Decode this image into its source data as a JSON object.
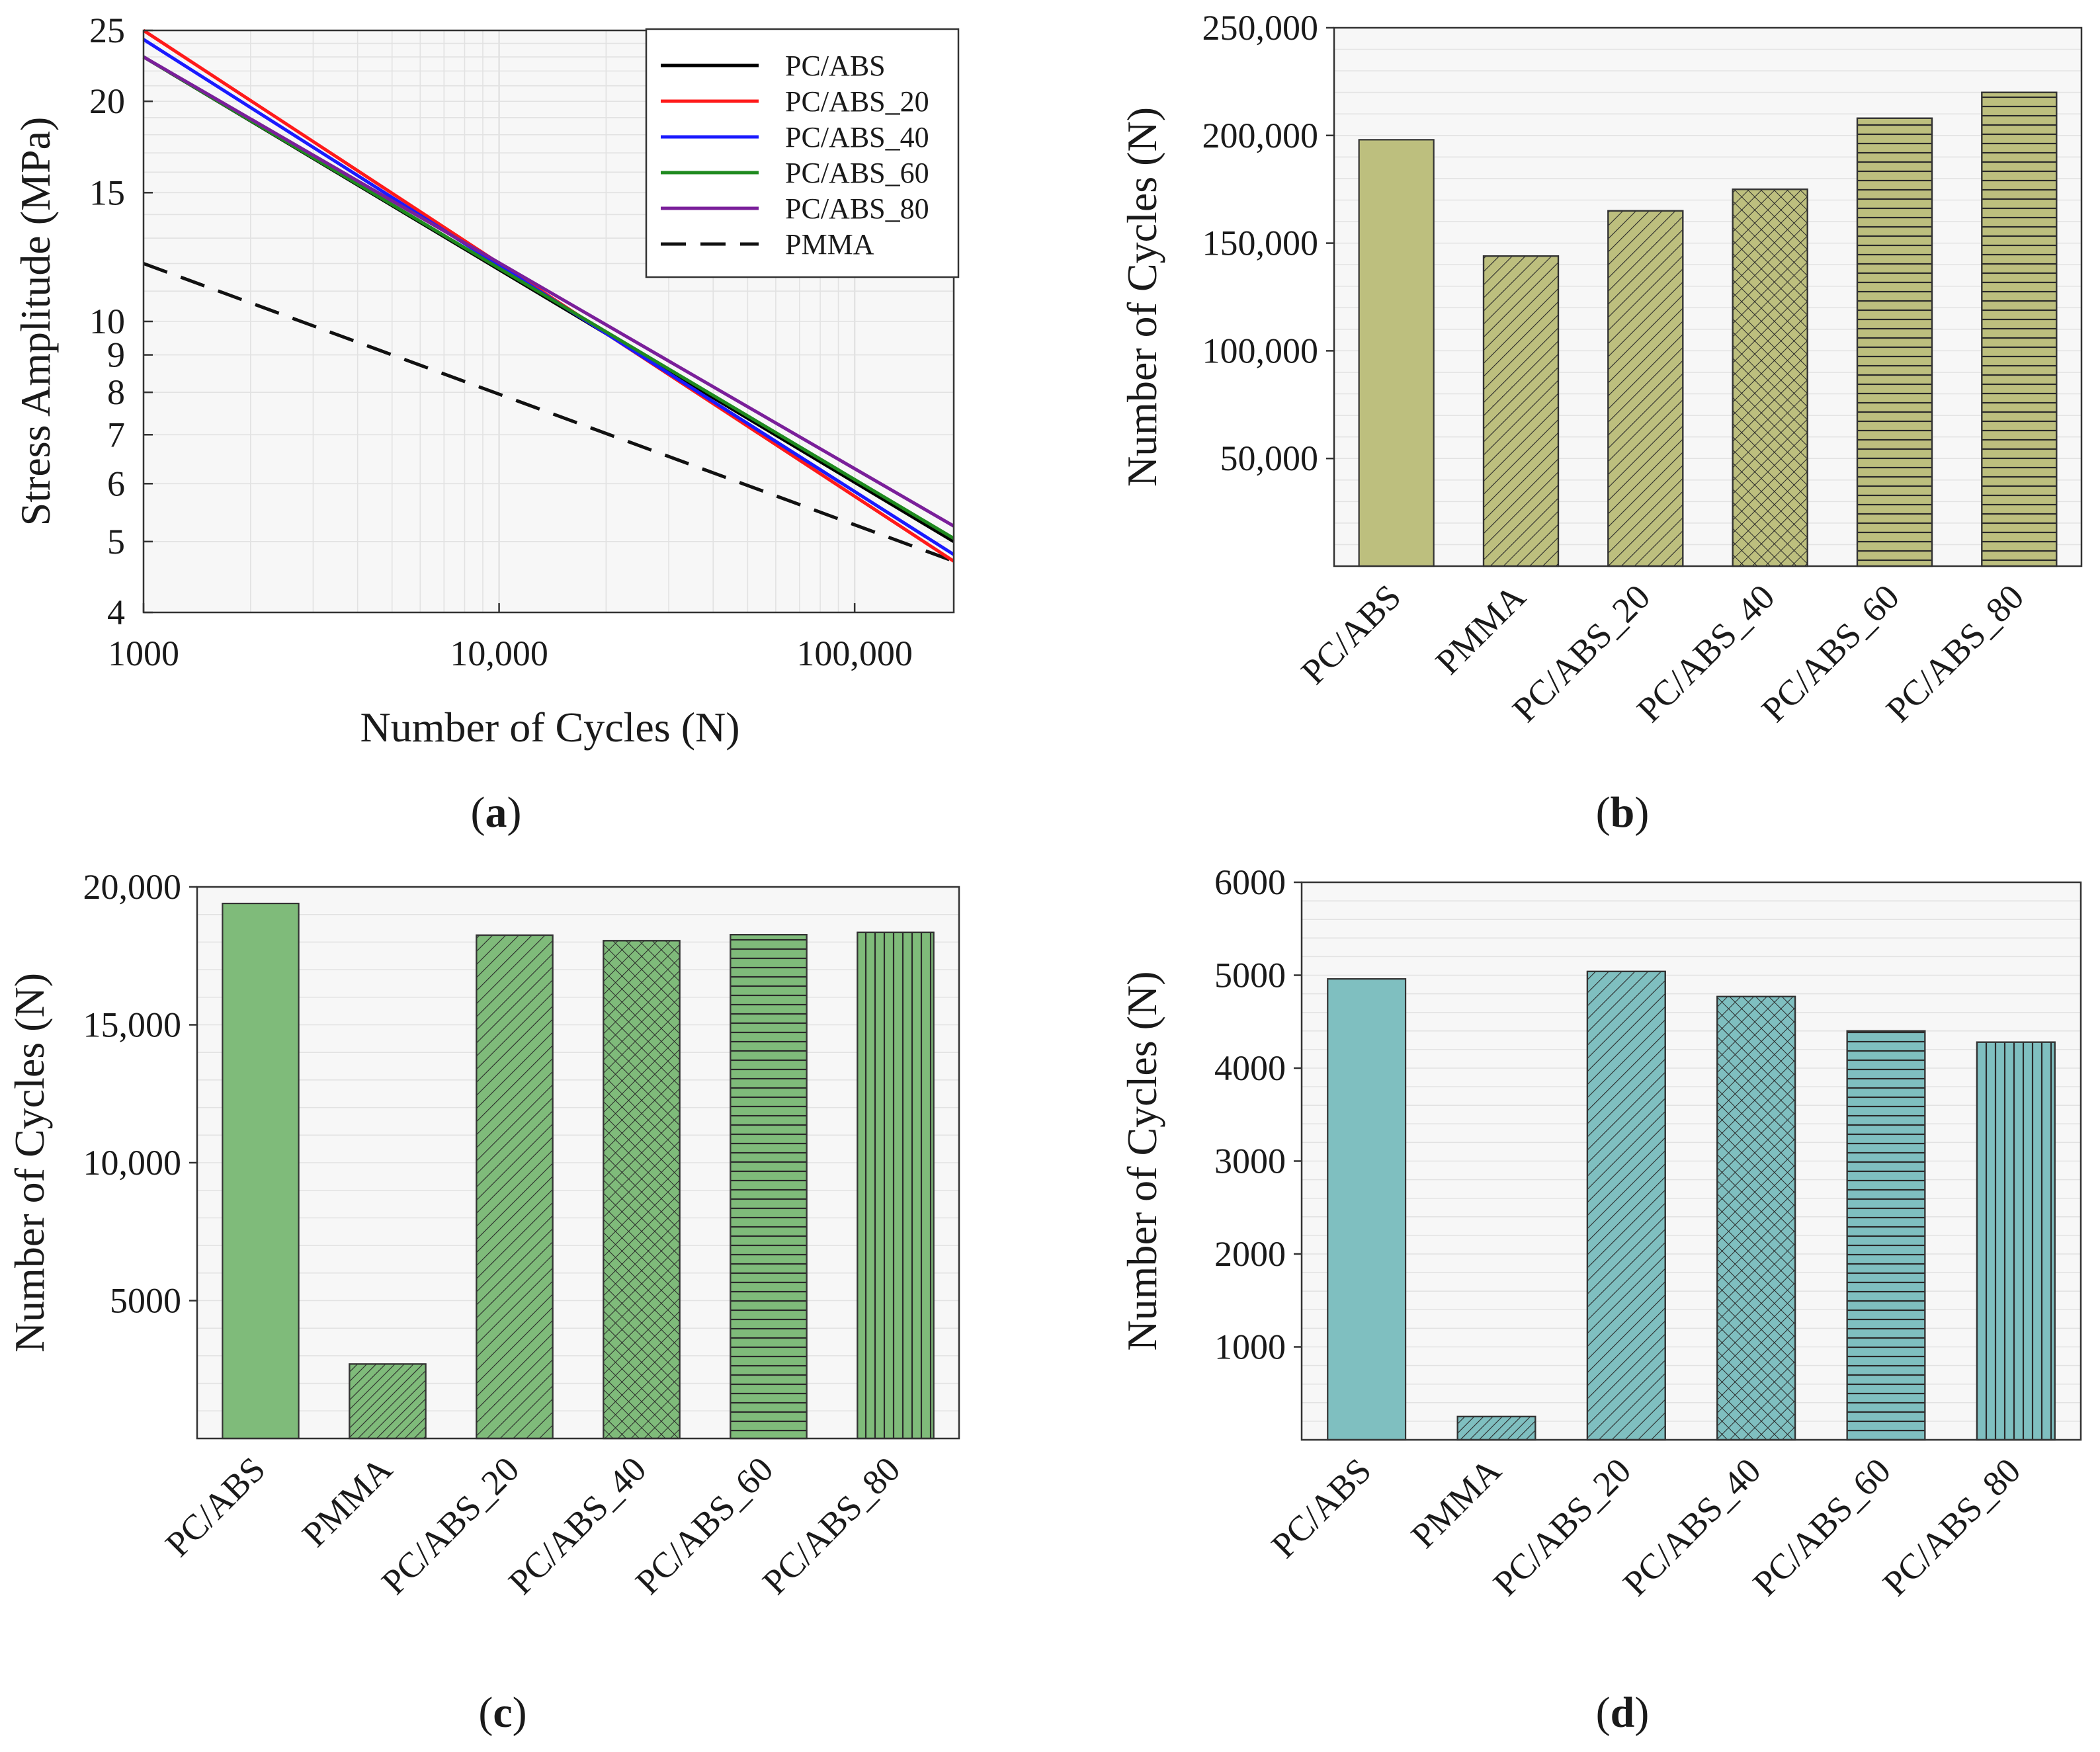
{
  "figure": {
    "panel_labels": [
      "a",
      "b",
      "c",
      "d"
    ],
    "colors": {
      "pc_abs": "#000000",
      "pc_abs_20": "#ff1a1a",
      "pc_abs_40": "#1a1aff",
      "pc_abs_60": "#1f8a1f",
      "pc_abs_80": "#7a1f9a",
      "pmma": "#111111",
      "bar_b": "#bdbf7e",
      "bar_c": "#7fbb7a",
      "bar_d": "#7fbfc0",
      "plot_bg": "#f7f7f7",
      "grid": "#e2e2e2"
    }
  },
  "chart_data": [
    {
      "id": "a",
      "type": "line",
      "xscale": "log",
      "yscale": "log",
      "xlabel": "Number of Cycles (N)",
      "ylabel": "Stress Amplitude (MPa)",
      "xlim": [
        1000,
        190000
      ],
      "ylim": [
        4,
        25
      ],
      "xticks": [
        1000,
        10000,
        100000
      ],
      "xtick_labels": [
        "1000",
        "10,000",
        "100,000"
      ],
      "yticks": [
        4,
        5,
        6,
        7,
        8,
        9,
        10,
        15,
        20,
        25
      ],
      "ytick_labels": [
        "4",
        "5",
        "6",
        "7",
        "8",
        "9",
        "10",
        "15",
        "20",
        "25"
      ],
      "legend_position": "top-right",
      "series": [
        {
          "name": "PC/ABS",
          "style": "solid",
          "x": [
            1000,
            190000
          ],
          "y": [
            23.0,
            5.0
          ]
        },
        {
          "name": "PC/ABS_20",
          "style": "solid",
          "x": [
            1000,
            190000
          ],
          "y": [
            25.0,
            4.7
          ]
        },
        {
          "name": "PC/ABS_40",
          "style": "solid",
          "x": [
            1000,
            190000
          ],
          "y": [
            24.3,
            4.8
          ]
        },
        {
          "name": "PC/ABS_60",
          "style": "solid",
          "x": [
            1000,
            190000
          ],
          "y": [
            23.0,
            5.05
          ]
        },
        {
          "name": "PC/ABS_80",
          "style": "solid",
          "x": [
            1000,
            190000
          ],
          "y": [
            23.0,
            5.25
          ]
        },
        {
          "name": "PMMA",
          "style": "dashed",
          "x": [
            1000,
            190000
          ],
          "y": [
            12.0,
            4.7
          ]
        }
      ]
    },
    {
      "id": "b",
      "type": "bar",
      "categories": [
        "PC/ABS",
        "PMMA",
        "PC/ABS_20",
        "PC/ABS_40",
        "PC/ABS_60",
        "PC/ABS_80"
      ],
      "values": [
        198000,
        144000,
        165000,
        175000,
        208000,
        220000
      ],
      "patterns": [
        "none",
        "diag",
        "diag",
        "cross",
        "horiz",
        "horiz"
      ],
      "ylabel": "Number of Cycles (N)",
      "ylim": [
        0,
        250000
      ],
      "yticks": [
        50000,
        100000,
        150000,
        200000,
        250000
      ],
      "ytick_labels": [
        "50,000",
        "100,000",
        "150,000",
        "200,000",
        "250,000"
      ]
    },
    {
      "id": "c",
      "type": "bar",
      "categories": [
        "PC/ABS",
        "PMMA",
        "PC/ABS_20",
        "PC/ABS_40",
        "PC/ABS_60",
        "PC/ABS_80"
      ],
      "values": [
        19400,
        2700,
        18250,
        18050,
        18270,
        18350
      ],
      "patterns": [
        "none",
        "diag-dense",
        "diag",
        "cross",
        "horiz",
        "vert"
      ],
      "ylabel": "Number of Cycles (N)",
      "ylim": [
        0,
        20000
      ],
      "yticks": [
        5000,
        10000,
        15000,
        20000
      ],
      "ytick_labels": [
        "5000",
        "10,000",
        "15,000",
        "20,000"
      ]
    },
    {
      "id": "d",
      "type": "bar",
      "categories": [
        "PC/ABS",
        "PMMA",
        "PC/ABS_20",
        "PC/ABS_40",
        "PC/ABS_60",
        "PC/ABS_80"
      ],
      "values": [
        4960,
        250,
        5040,
        4770,
        4400,
        4280
      ],
      "patterns": [
        "none",
        "diag-dense",
        "diag",
        "cross",
        "horiz",
        "vert"
      ],
      "ylabel": "Number of Cycles (N)",
      "ylim": [
        0,
        6000
      ],
      "yticks": [
        1000,
        2000,
        3000,
        4000,
        5000,
        6000
      ],
      "ytick_labels": [
        "1000",
        "2000",
        "3000",
        "4000",
        "5000",
        "6000"
      ]
    }
  ]
}
